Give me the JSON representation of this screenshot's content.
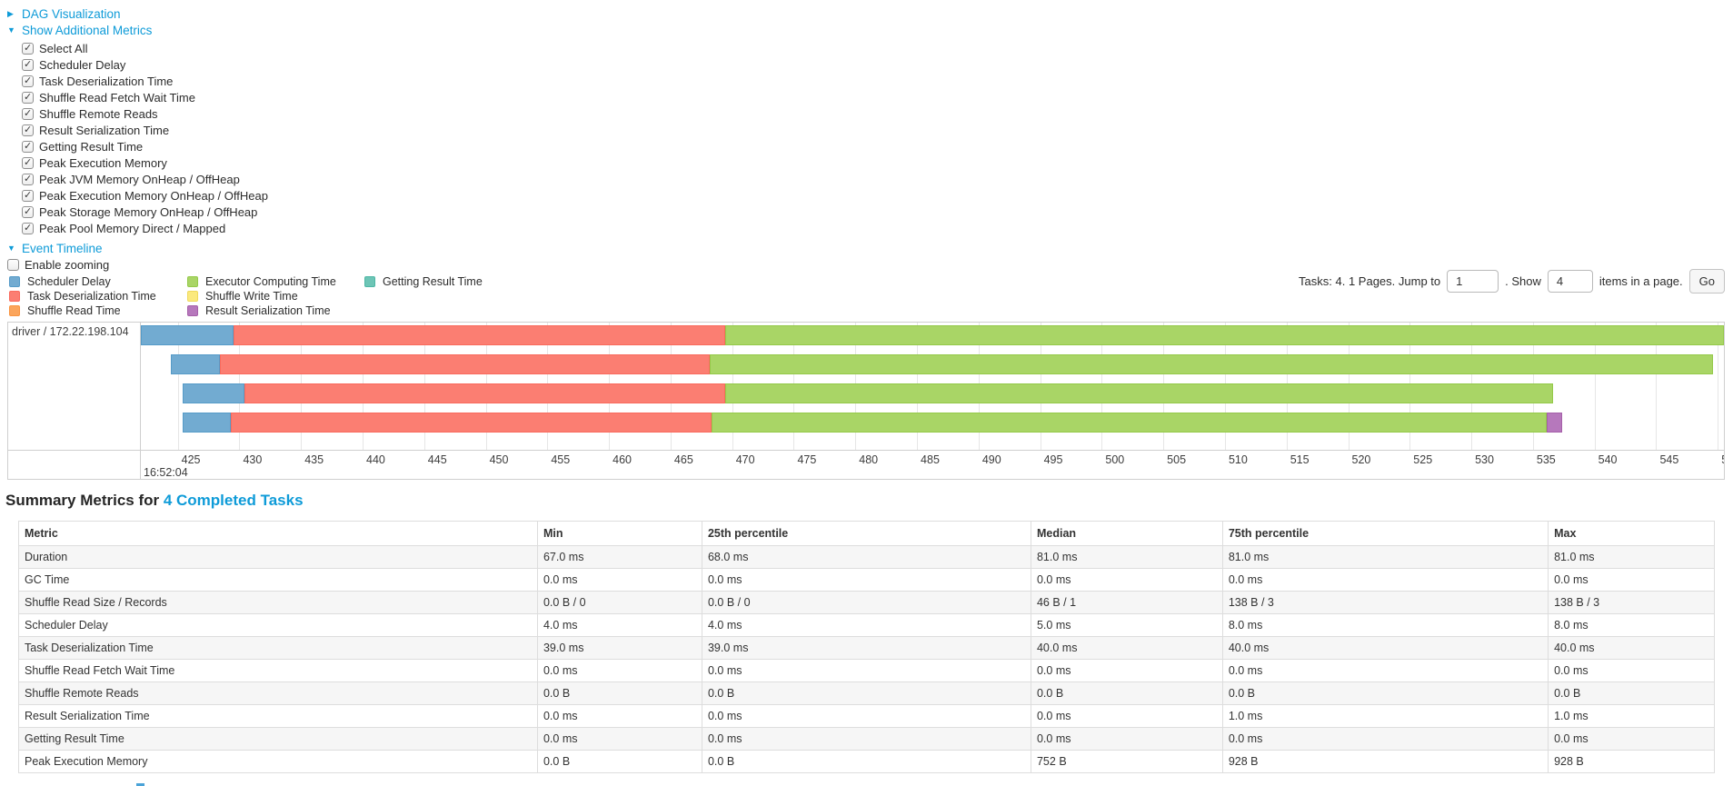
{
  "colors": {
    "link": "#0e9bd8",
    "metrics": {
      "scheduler_delay": {
        "fill": "#72ABD1",
        "border": "#559BC8"
      },
      "task_deserialization": {
        "fill": "#FB7E72",
        "border": "#F96A5D"
      },
      "shuffle_read": {
        "fill": "#FBA55C",
        "border": "#F99440"
      },
      "executor_computing": {
        "fill": "#A9D566",
        "border": "#94C948"
      },
      "shuffle_write": {
        "fill": "#FBE97E",
        "border": "#EFD95B"
      },
      "result_serialization": {
        "fill": "#B678BC",
        "border": "#A55FA9"
      },
      "getting_result": {
        "fill": "#6DC5B6",
        "border": "#4DB6A4"
      }
    }
  },
  "toggles": {
    "dag": {
      "label": "DAG Visualization",
      "state": "collapsed",
      "arrow": "▶"
    },
    "metrics": {
      "label": "Show Additional Metrics",
      "state": "expanded",
      "arrow": "▼"
    },
    "timeline": {
      "label": "Event Timeline",
      "state": "expanded",
      "arrow": "▼"
    }
  },
  "metric_checkboxes": [
    {
      "label": "Select All",
      "checked": true
    },
    {
      "label": "Scheduler Delay",
      "checked": true
    },
    {
      "label": "Task Deserialization Time",
      "checked": true
    },
    {
      "label": "Shuffle Read Fetch Wait Time",
      "checked": true
    },
    {
      "label": "Shuffle Remote Reads",
      "checked": true
    },
    {
      "label": "Result Serialization Time",
      "checked": true
    },
    {
      "label": "Getting Result Time",
      "checked": true
    },
    {
      "label": "Peak Execution Memory",
      "checked": true
    },
    {
      "label": "Peak JVM Memory OnHeap / OffHeap",
      "checked": true
    },
    {
      "label": "Peak Execution Memory OnHeap / OffHeap",
      "checked": true
    },
    {
      "label": "Peak Storage Memory OnHeap / OffHeap",
      "checked": true
    },
    {
      "label": "Peak Pool Memory Direct / Mapped",
      "checked": true
    }
  ],
  "enable_zooming": {
    "label": "Enable zooming",
    "checked": false
  },
  "legend": [
    {
      "label": "Scheduler Delay",
      "metric": "scheduler_delay",
      "col": 0,
      "row": 0
    },
    {
      "label": "Task Deserialization Time",
      "metric": "task_deserialization",
      "col": 0,
      "row": 1
    },
    {
      "label": "Shuffle Read Time",
      "metric": "shuffle_read",
      "col": 0,
      "row": 2
    },
    {
      "label": "Executor Computing Time",
      "metric": "executor_computing",
      "col": 1,
      "row": 0
    },
    {
      "label": "Shuffle Write Time",
      "metric": "shuffle_write",
      "col": 1,
      "row": 1
    },
    {
      "label": "Result Serialization Time",
      "metric": "result_serialization",
      "col": 1,
      "row": 2
    },
    {
      "label": "Getting Result Time",
      "metric": "getting_result",
      "col": 2,
      "row": 0
    }
  ],
  "pagination": {
    "summary": "Tasks: 4. 1 Pages. Jump to",
    "jump_value": "1",
    "show_label": ". Show",
    "show_value": "4",
    "items_label": "items in a page.",
    "go_label": "Go"
  },
  "chart_data": {
    "type": "timeline",
    "title": "Event Timeline",
    "group": "driver / 172.22.198.104",
    "x_axis": {
      "start": 422.0,
      "end": 550.5,
      "tick_interval": 5,
      "ticks": [
        425,
        430,
        435,
        440,
        445,
        450,
        455,
        460,
        465,
        470,
        475,
        480,
        485,
        490,
        495,
        500,
        505,
        510,
        515,
        520,
        525,
        530,
        535,
        540,
        545,
        550
      ],
      "major_label": "16:52:04",
      "unit": "ms"
    },
    "tasks": [
      {
        "name": "task-row-1",
        "segments": [
          {
            "metric": "scheduler_delay",
            "start": 422.0,
            "end": 429.5
          },
          {
            "metric": "task_deserialization",
            "start": 429.5,
            "end": 469.4
          },
          {
            "metric": "executor_computing",
            "start": 469.4,
            "end": 550.5
          }
        ]
      },
      {
        "name": "task-row-2",
        "segments": [
          {
            "metric": "scheduler_delay",
            "start": 424.4,
            "end": 428.4
          },
          {
            "metric": "task_deserialization",
            "start": 428.4,
            "end": 468.2
          },
          {
            "metric": "executor_computing",
            "start": 468.2,
            "end": 549.6
          }
        ]
      },
      {
        "name": "task-row-3",
        "segments": [
          {
            "metric": "scheduler_delay",
            "start": 425.4,
            "end": 430.4
          },
          {
            "metric": "task_deserialization",
            "start": 430.4,
            "end": 469.4
          },
          {
            "metric": "executor_computing",
            "start": 469.4,
            "end": 536.6
          }
        ]
      },
      {
        "name": "task-row-4",
        "segments": [
          {
            "metric": "scheduler_delay",
            "start": 425.4,
            "end": 429.3
          },
          {
            "metric": "task_deserialization",
            "start": 429.3,
            "end": 468.3
          },
          {
            "metric": "executor_computing",
            "start": 468.3,
            "end": 536.1
          },
          {
            "metric": "result_serialization",
            "start": 536.1,
            "end": 537.4
          }
        ]
      }
    ]
  },
  "summary": {
    "heading_prefix": "Summary Metrics for ",
    "heading_link": "4 Completed Tasks",
    "table": {
      "headers": [
        "Metric",
        "Min",
        "25th percentile",
        "Median",
        "75th percentile",
        "Max"
      ],
      "rows": [
        [
          "Duration",
          "67.0 ms",
          "68.0 ms",
          "81.0 ms",
          "81.0 ms",
          "81.0 ms"
        ],
        [
          "GC Time",
          "0.0 ms",
          "0.0 ms",
          "0.0 ms",
          "0.0 ms",
          "0.0 ms"
        ],
        [
          "Shuffle Read Size / Records",
          "0.0 B / 0",
          "0.0 B / 0",
          "46 B / 1",
          "138 B / 3",
          "138 B / 3"
        ],
        [
          "Scheduler Delay",
          "4.0 ms",
          "4.0 ms",
          "5.0 ms",
          "8.0 ms",
          "8.0 ms"
        ],
        [
          "Task Deserialization Time",
          "39.0 ms",
          "39.0 ms",
          "40.0 ms",
          "40.0 ms",
          "40.0 ms"
        ],
        [
          "Shuffle Read Fetch Wait Time",
          "0.0 ms",
          "0.0 ms",
          "0.0 ms",
          "0.0 ms",
          "0.0 ms"
        ],
        [
          "Shuffle Remote Reads",
          "0.0 B",
          "0.0 B",
          "0.0 B",
          "0.0 B",
          "0.0 B"
        ],
        [
          "Result Serialization Time",
          "0.0 ms",
          "0.0 ms",
          "0.0 ms",
          "1.0 ms",
          "1.0 ms"
        ],
        [
          "Getting Result Time",
          "0.0 ms",
          "0.0 ms",
          "0.0 ms",
          "0.0 ms",
          "0.0 ms"
        ],
        [
          "Peak Execution Memory",
          "0.0 B",
          "0.0 B",
          "752 B",
          "928 B",
          "928 B"
        ]
      ]
    }
  }
}
